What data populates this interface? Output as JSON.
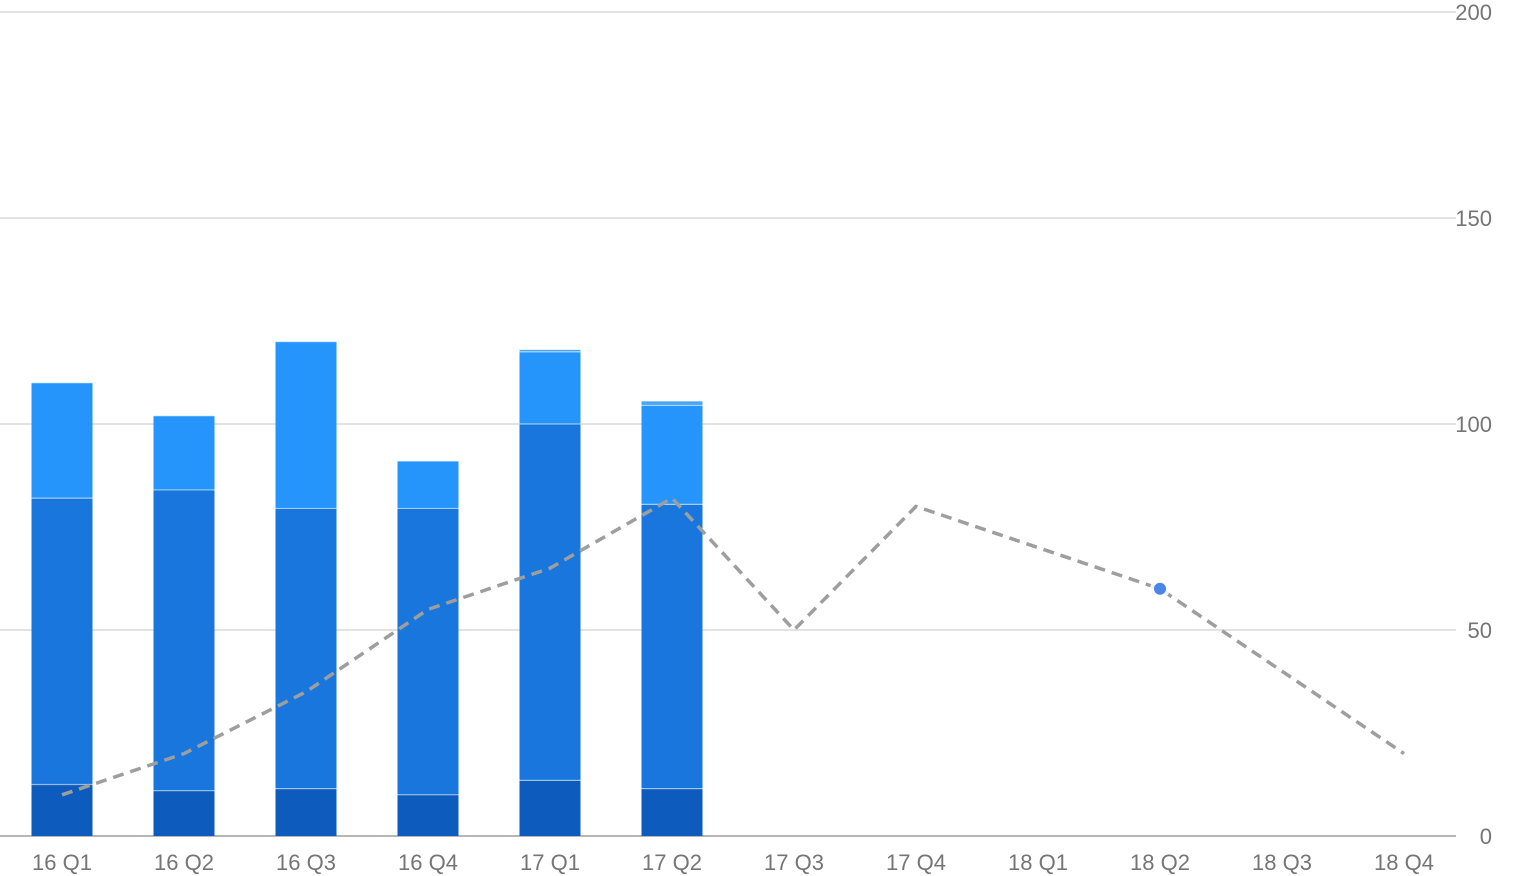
{
  "chart_data": {
    "type": "bar",
    "stacked": true,
    "categories": [
      "16 Q1",
      "16 Q2",
      "16 Q3",
      "16 Q4",
      "17 Q1",
      "17 Q2",
      "17 Q3",
      "17 Q4",
      "18 Q1",
      "18 Q2",
      "18 Q3",
      "18 Q4"
    ],
    "series": [
      {
        "kind": "bar",
        "color": "#0d5bbd",
        "values": [
          12.5,
          11,
          11.5,
          10,
          13.5,
          11.5,
          null,
          null,
          null,
          null,
          null,
          null
        ]
      },
      {
        "kind": "bar",
        "color": "#1976dc",
        "values": [
          69.5,
          73,
          68,
          69.5,
          86.5,
          69,
          null,
          null,
          null,
          null,
          null,
          null
        ]
      },
      {
        "kind": "bar",
        "color": "#2594fb",
        "values": [
          28,
          18,
          40.5,
          11.5,
          17.5,
          24,
          null,
          null,
          null,
          null,
          null,
          null
        ]
      },
      {
        "kind": "bar",
        "color": "#4aa6f2",
        "values": [
          0,
          0,
          0,
          0,
          0.5,
          1,
          null,
          null,
          null,
          null,
          null,
          null
        ]
      },
      {
        "kind": "line",
        "color": "#9e9e9e",
        "dashed": true,
        "values": [
          10,
          20,
          35,
          55,
          65,
          82,
          50,
          80,
          70,
          60,
          40,
          20
        ]
      }
    ],
    "highlight": {
      "category": "18 Q2",
      "value": 60,
      "color": "#4a86e8"
    },
    "y_axis": {
      "position": "right",
      "ylim": [
        0,
        200
      ],
      "ticks": [
        0,
        50,
        100,
        150,
        200
      ]
    },
    "grid": true,
    "legend": "none",
    "title": "",
    "xlabel": "",
    "ylabel": ""
  }
}
